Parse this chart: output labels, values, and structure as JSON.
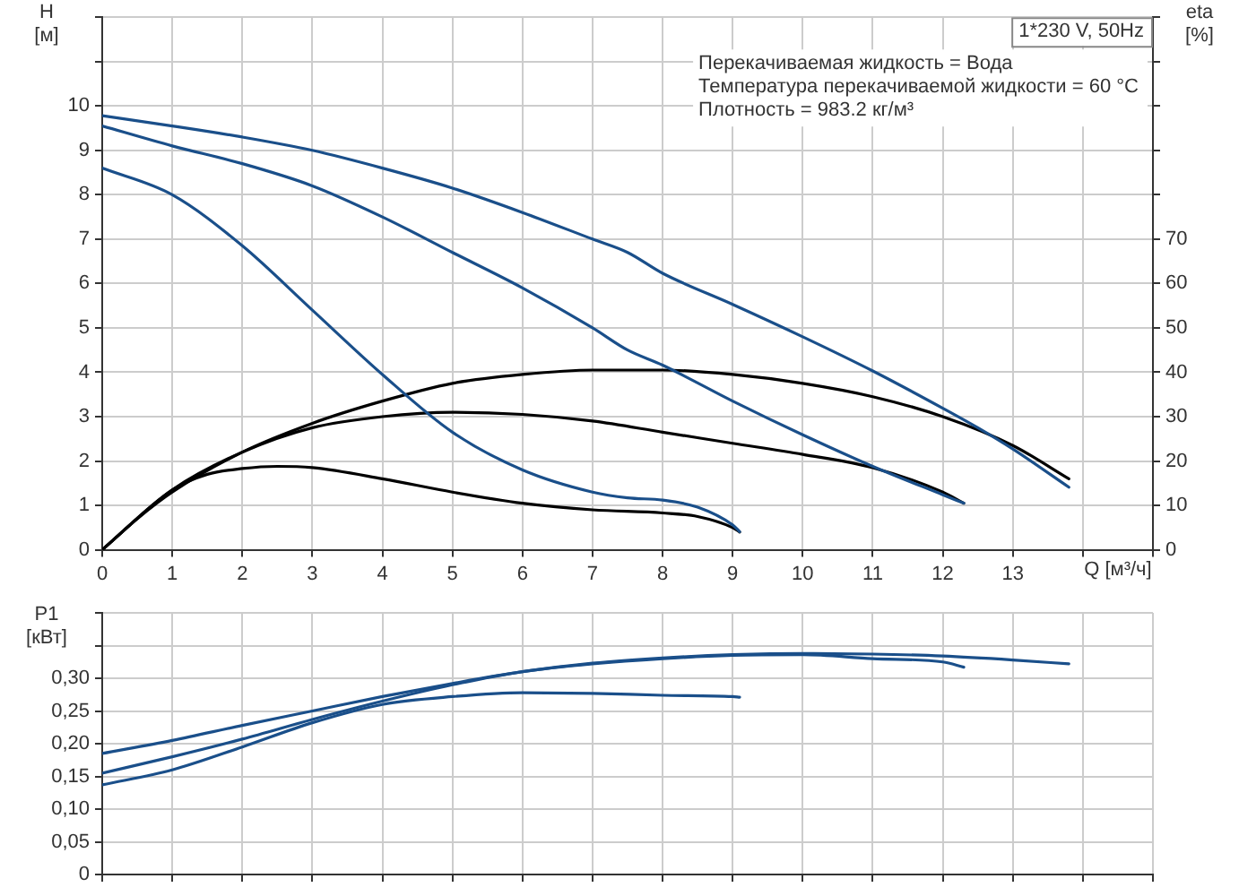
{
  "chart_data": [
    {
      "type": "line",
      "title": "1*230 V, 50Hz",
      "xlabel": "Q [м³/ч]",
      "ylabel": "H [м]",
      "y2label": "eta [%]",
      "annotations": [
        "Перекачиваемая жидкость = Вода",
        "Температура перекачиваемой жидкости = 60 °C",
        "Плотность = 983.2 кг/м³"
      ],
      "xlim": [
        0,
        15
      ],
      "xticks": [
        0,
        1,
        2,
        3,
        4,
        5,
        6,
        7,
        8,
        9,
        10,
        11,
        12,
        13,
        {
          "value": 14,
          "label": null
        },
        {
          "value": 15,
          "label": null
        }
      ],
      "ylim": [
        0,
        12
      ],
      "yticks": [
        0,
        1,
        2,
        3,
        4,
        5,
        6,
        7,
        8,
        9,
        10,
        {
          "value": 11,
          "label": null
        },
        {
          "value": 12,
          "label": null
        }
      ],
      "y2lim": [
        0,
        120
      ],
      "y2ticks": [
        0,
        10,
        20,
        30,
        40,
        50,
        60,
        70,
        {
          "value": 80,
          "label": null
        },
        {
          "value": 90,
          "label": null
        },
        {
          "value": 100,
          "label": null
        },
        {
          "value": 110,
          "label": null
        },
        {
          "value": 120,
          "label": null
        }
      ],
      "grid": true,
      "legend": false,
      "series": [
        {
          "color": "#1a4f8a",
          "x": [
            0,
            1,
            2,
            3,
            4,
            5,
            6,
            7,
            7.5,
            8,
            9,
            10,
            11,
            12,
            12.5,
            13,
            13.8
          ],
          "values": [
            9.78,
            9.55,
            9.3,
            9.0,
            8.6,
            8.15,
            7.6,
            7.0,
            6.7,
            6.23,
            5.53,
            4.8,
            4.03,
            3.19,
            2.75,
            2.27,
            1.41
          ]
        },
        {
          "color": "#1a4f8a",
          "x": [
            0,
            1,
            2,
            3,
            4,
            5,
            6,
            7,
            7.5,
            8,
            9,
            10,
            11,
            12,
            12.3
          ],
          "values": [
            9.55,
            9.1,
            8.7,
            8.2,
            7.5,
            6.7,
            5.9,
            5.0,
            4.5,
            4.16,
            3.35,
            2.59,
            1.88,
            1.24,
            1.05
          ]
        },
        {
          "color": "#1a4f8a",
          "x": [
            0,
            1,
            2,
            3,
            4,
            5,
            6,
            7,
            7.5,
            8,
            8.5,
            9,
            9.1
          ],
          "values": [
            8.6,
            8.0,
            6.85,
            5.4,
            3.95,
            2.65,
            1.8,
            1.3,
            1.17,
            1.12,
            0.96,
            0.56,
            0.41
          ]
        },
        {
          "color": "#000000",
          "axis": "y2",
          "x": [
            0,
            0.5,
            1,
            2,
            3,
            4,
            5,
            6,
            7,
            8,
            9,
            10,
            11,
            12,
            13,
            13.8
          ],
          "values": [
            0,
            7,
            13,
            22,
            28.5,
            33.5,
            37.5,
            39.5,
            40.5,
            40.5,
            39.5,
            37.5,
            34.5,
            30,
            23.5,
            16
          ]
        },
        {
          "color": "#000000",
          "axis": "y2",
          "x": [
            0,
            1,
            2,
            3,
            4,
            5,
            6,
            7,
            8,
            9,
            10,
            11,
            12,
            12.3
          ],
          "values": [
            0,
            13.5,
            22,
            27.5,
            30,
            31,
            30.5,
            29,
            26.5,
            24,
            21.5,
            18.5,
            13,
            10.5
          ]
        },
        {
          "color": "#000000",
          "axis": "y2",
          "x": [
            0,
            1,
            1.5,
            2,
            2.5,
            3,
            4,
            5,
            6,
            7,
            8,
            8.5,
            9,
            9.1
          ],
          "values": [
            0,
            13.5,
            17,
            18.3,
            18.8,
            18.5,
            16,
            13,
            10.5,
            9,
            8.3,
            7.5,
            5,
            4
          ]
        }
      ]
    },
    {
      "type": "line",
      "ylabel": "P1 [кВт]",
      "tick_labels": "y",
      "xlim": [
        0,
        15
      ],
      "xticks": [
        0,
        1,
        2,
        3,
        4,
        5,
        6,
        7,
        8,
        9,
        10,
        11,
        12,
        13,
        14,
        15
      ],
      "ylim": [
        0,
        0.4
      ],
      "yticks": [
        0,
        {
          "value": 0.05,
          "label": "0,05"
        },
        {
          "value": 0.1,
          "label": "0,10"
        },
        {
          "value": 0.15,
          "label": "0,15"
        },
        {
          "value": 0.2,
          "label": "0,20"
        },
        {
          "value": 0.25,
          "label": "0,25"
        },
        {
          "value": 0.3,
          "label": "0,30"
        },
        {
          "value": 0.35,
          "label": null
        },
        {
          "value": 0.4,
          "label": null
        }
      ],
      "grid": true,
      "legend": false,
      "series": [
        {
          "color": "#1a4f8a",
          "x": [
            0,
            1,
            2,
            3,
            4,
            5,
            6,
            7,
            8,
            9,
            10,
            11,
            12,
            13,
            13.8
          ],
          "values": [
            0.185,
            0.205,
            0.228,
            0.25,
            0.272,
            0.292,
            0.31,
            0.323,
            0.331,
            0.336,
            0.338,
            0.337,
            0.334,
            0.328,
            0.322
          ]
        },
        {
          "color": "#1a4f8a",
          "x": [
            0,
            1,
            2,
            3,
            4,
            5,
            6,
            7,
            8,
            9,
            10,
            11,
            12,
            12.3
          ],
          "values": [
            0.155,
            0.18,
            0.207,
            0.237,
            0.265,
            0.29,
            0.31,
            0.322,
            0.33,
            0.335,
            0.336,
            0.33,
            0.325,
            0.317
          ]
        },
        {
          "color": "#1a4f8a",
          "x": [
            0,
            1,
            2,
            3,
            4,
            5,
            6,
            7,
            8,
            9,
            9.1
          ],
          "values": [
            0.137,
            0.16,
            0.195,
            0.232,
            0.26,
            0.272,
            0.278,
            0.277,
            0.274,
            0.272,
            0.271
          ]
        }
      ]
    }
  ]
}
